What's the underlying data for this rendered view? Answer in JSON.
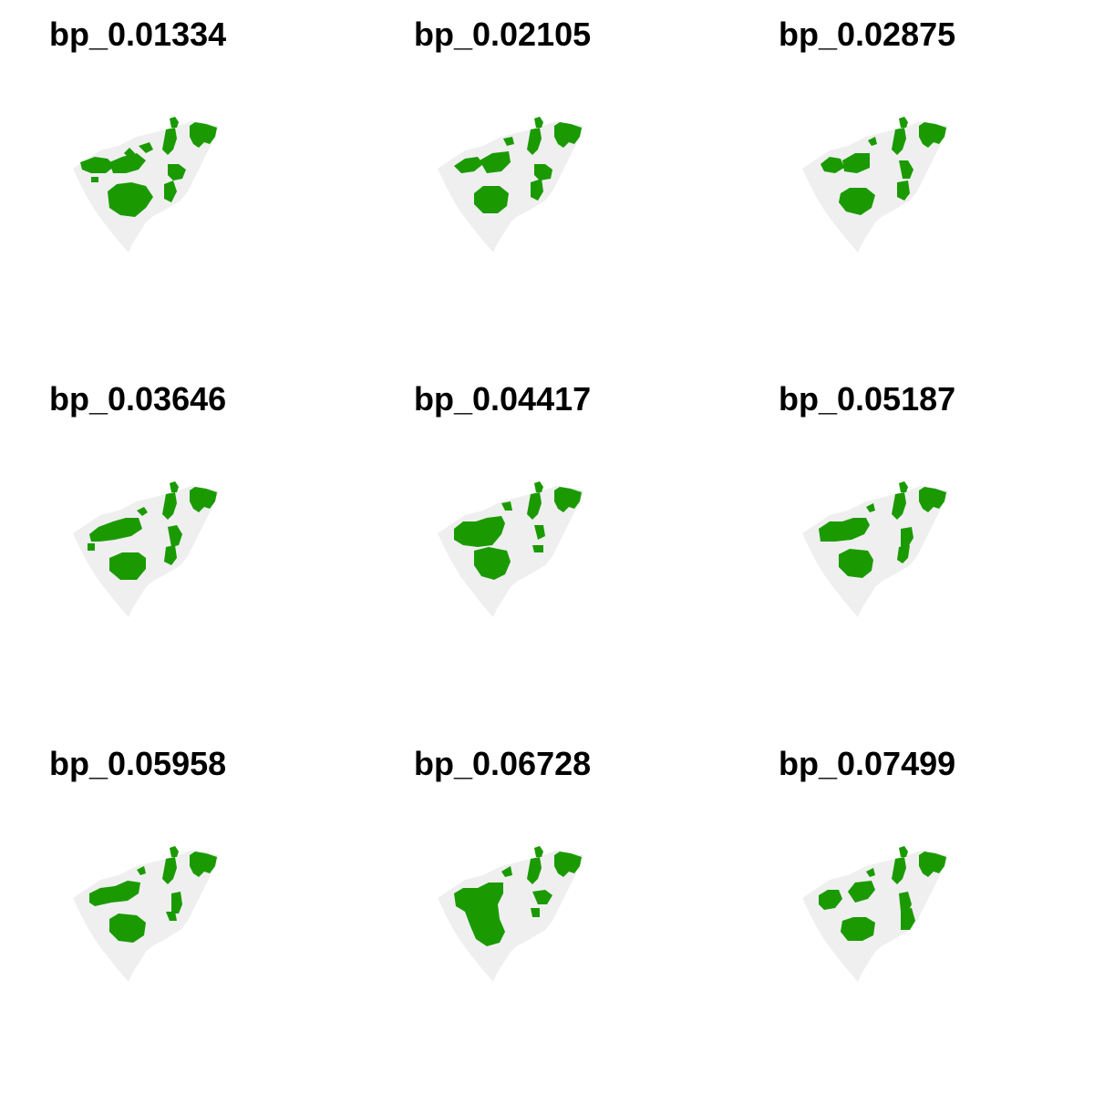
{
  "colors": {
    "region": "#efefef",
    "patch": "#1a9a00",
    "background": "#ffffff"
  },
  "panels": [
    {
      "title": "bp_0.01334",
      "variant": 0
    },
    {
      "title": "bp_0.02105",
      "variant": 1
    },
    {
      "title": "bp_0.02875",
      "variant": 2
    },
    {
      "title": "bp_0.03646",
      "variant": 3
    },
    {
      "title": "bp_0.04417",
      "variant": 4
    },
    {
      "title": "bp_0.05187",
      "variant": 5
    },
    {
      "title": "bp_0.05958",
      "variant": 6
    },
    {
      "title": "bp_0.06728",
      "variant": 7
    },
    {
      "title": "bp_0.07499",
      "variant": 8
    }
  ]
}
